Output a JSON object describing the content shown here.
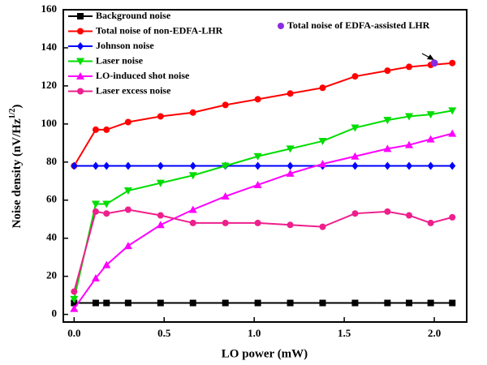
{
  "chart_data": {
    "type": "line",
    "x_label": "LO power (mW)",
    "y_label_parts": [
      "Noise density (nV/Hz",
      "1/2",
      ")"
    ],
    "x": [
      0,
      0.12,
      0.18,
      0.3,
      0.48,
      0.66,
      0.84,
      1.02,
      1.2,
      1.38,
      1.56,
      1.74,
      1.86,
      1.98,
      2.1
    ],
    "series": [
      {
        "name": "Background noise",
        "color": "#000000",
        "marker": "square",
        "values": [
          6,
          6,
          6,
          6,
          6,
          6,
          6,
          6,
          6,
          6,
          6,
          6,
          6,
          6,
          6
        ]
      },
      {
        "name": "Total noise of non-EDFA-LHR",
        "color": "#ff0000",
        "marker": "circle",
        "values": [
          78,
          97,
          97,
          101,
          104,
          106,
          110,
          113,
          116,
          119,
          125,
          128,
          130,
          131,
          132
        ]
      },
      {
        "name": "Johnson noise",
        "color": "#0000ff",
        "marker": "diamond",
        "values": [
          78,
          78,
          78,
          78,
          78,
          78,
          78,
          78,
          78,
          78,
          78,
          78,
          78,
          78,
          78
        ]
      },
      {
        "name": "Laser noise",
        "color": "#00dd00",
        "marker": "triangle-down",
        "values": [
          8,
          58,
          58,
          65,
          69,
          73,
          78,
          83,
          87,
          91,
          98,
          102,
          104,
          105,
          107
        ]
      },
      {
        "name": "LO-induced shot noise",
        "color": "#ff00ff",
        "marker": "triangle-up",
        "values": [
          3,
          19,
          26,
          36,
          47,
          55,
          62,
          68,
          74,
          79,
          83,
          87,
          89,
          92,
          95
        ]
      },
      {
        "name": "Laser excess noise",
        "color": "#ee1f8c",
        "marker": "circle",
        "values": [
          12,
          54,
          53,
          55,
          52,
          48,
          48,
          48,
          47,
          46,
          53,
          54,
          52,
          48,
          51
        ]
      }
    ],
    "point": {
      "name": "Total noise of EDFA-assisted LHR",
      "color": "#8a2be2",
      "x": 2.0,
      "value": 132
    },
    "xlim": [
      -0.06,
      2.18
    ],
    "ylim": [
      -4,
      160
    ],
    "xticks": [
      {
        "value": 0,
        "label": "0.0"
      },
      {
        "value": 0.5,
        "label": "0.5"
      },
      {
        "value": 1,
        "label": "1.0"
      },
      {
        "value": 1.5,
        "label": "1.5"
      },
      {
        "value": 2,
        "label": "2.0"
      }
    ],
    "yticks": [
      0,
      20,
      40,
      60,
      80,
      100,
      120,
      140,
      160
    ],
    "legend": "upper-left"
  }
}
